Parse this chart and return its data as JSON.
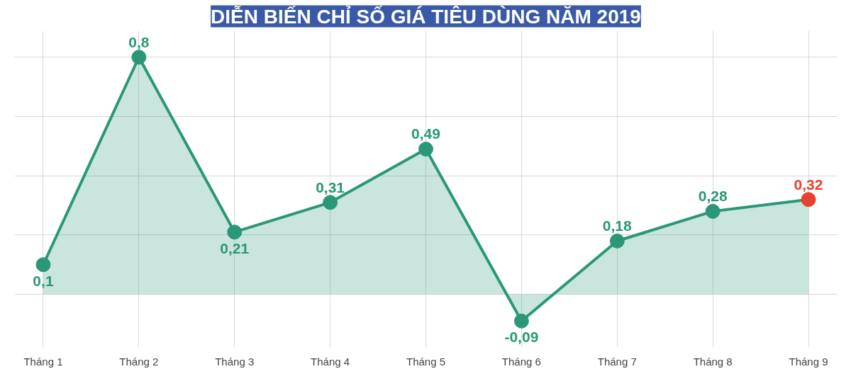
{
  "chart_data": {
    "type": "area",
    "title": "DIỄN BIẾN CHỈ SỐ GIÁ TIÊU DÙNG NĂM 2019",
    "categories": [
      "Tháng 1",
      "Tháng 2",
      "Tháng 3",
      "Tháng 4",
      "Tháng 5",
      "Tháng 6",
      "Tháng 7",
      "Tháng 8",
      "Tháng 9"
    ],
    "series": [
      {
        "color": "#2a9878",
        "colors": [
          "#2a9878",
          "#2a9878",
          "#2a9878",
          "#2a9878",
          "#2a9878",
          "#2a9878",
          "#2a9878",
          "#2a9878",
          "#e5432b"
        ],
        "values": [
          0.1,
          0.8,
          0.21,
          0.31,
          0.49,
          -0.09,
          0.18,
          0.28,
          0.32
        ],
        "value_labels": [
          "0,1",
          "0,8",
          "0,21",
          "0,31",
          "0,49",
          "-0,09",
          "0,18",
          "0,28",
          "0,32"
        ]
      }
    ],
    "marker": "circle",
    "grid": true,
    "tick_labels": "x"
  }
}
